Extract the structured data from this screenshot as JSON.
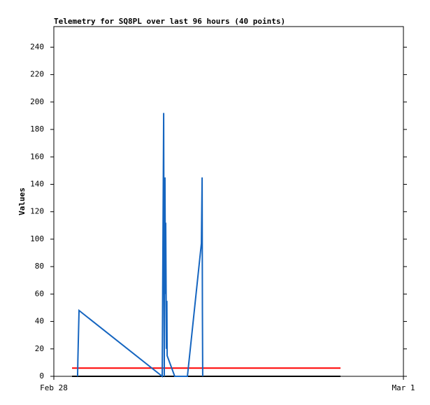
{
  "chart_data": {
    "type": "line",
    "title": "Telemetry for SQ8PL over last 96 hours (40 points)",
    "ylabel": "Values",
    "xlim": [
      0,
      24
    ],
    "xticks": [
      {
        "value": 0,
        "label": "Feb 28"
      },
      {
        "value": 24,
        "label": "Mar 1"
      }
    ],
    "ylim": [
      0,
      255
    ],
    "yticks": [
      0,
      20,
      40,
      60,
      80,
      100,
      120,
      140,
      160,
      180,
      200,
      220,
      240
    ],
    "series": [
      {
        "color": "#000000",
        "x": [
          1.25,
          19.68
        ],
        "values": [
          0,
          0
        ]
      },
      {
        "color": "#ff0000",
        "x": [
          1.25,
          19.68
        ],
        "values": [
          6,
          6
        ]
      },
      {
        "color": "#1565c0",
        "x": [
          1.63,
          1.65,
          1.73,
          7.44,
          7.49,
          7.54,
          7.58,
          7.63,
          7.66,
          7.68,
          7.73,
          7.76,
          7.78,
          8.3,
          9.17,
          10.13,
          10.18,
          10.2,
          10.22
        ],
        "values": [
          0,
          12,
          48,
          0,
          97,
          192,
          0,
          145,
          60,
          112,
          20,
          55,
          15,
          0,
          0,
          97,
          145,
          48,
          0
        ]
      }
    ]
  }
}
